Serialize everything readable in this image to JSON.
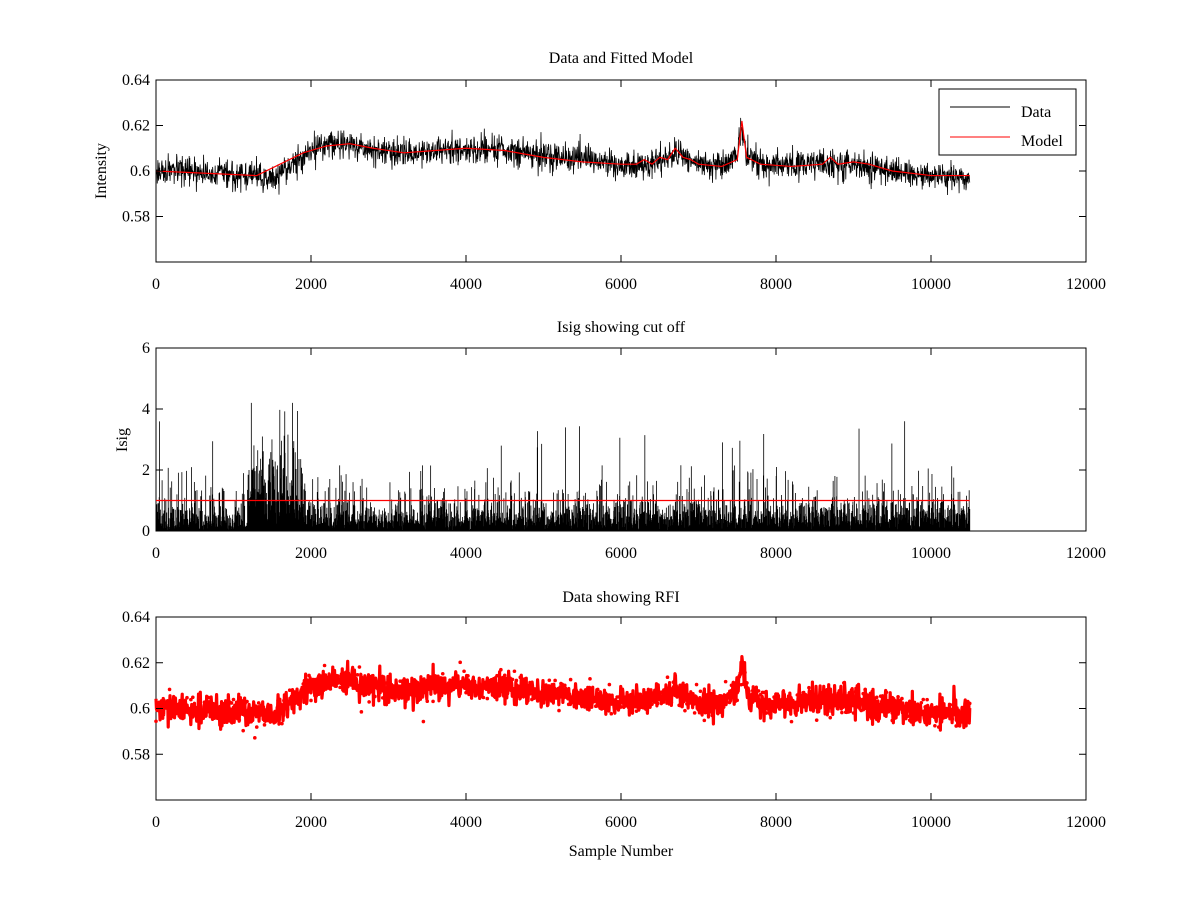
{
  "figure": {
    "background": "#ffffff",
    "data_color": "#000000",
    "model_color": "#ff0000"
  },
  "chart_data": [
    {
      "id": "panel1",
      "type": "line",
      "title": "Data and Fitted Model",
      "xlabel": "",
      "ylabel": "Intensity",
      "xlim": [
        0,
        12000
      ],
      "ylim": [
        0.56,
        0.64
      ],
      "xticks": [
        0,
        2000,
        4000,
        6000,
        8000,
        10000,
        12000
      ],
      "xtick_labels": [
        "0",
        "2000",
        "4000",
        "6000",
        "8000",
        "10000",
        "12000"
      ],
      "yticks": [
        0.58,
        0.6,
        0.62,
        0.64
      ],
      "ytick_labels": [
        "0.58",
        "0.6",
        "0.62",
        "0.64"
      ],
      "legend": {
        "placement": "top-right",
        "entries": [
          {
            "label": "Data",
            "color": "#000000"
          },
          {
            "label": "Model",
            "color": "#ff0000"
          }
        ]
      },
      "series": [
        {
          "name": "Data",
          "color": "#000000",
          "style": "noisy-line",
          "noise_amplitude": 0.0055,
          "x": [
            0,
            1300,
            1500,
            1900,
            2200,
            2500,
            2800,
            3200,
            3600,
            4000,
            4500,
            5000,
            5500,
            6000,
            6200,
            6500,
            6700,
            6800,
            7000,
            7300,
            7500,
            7560,
            7620,
            7800,
            8200,
            8600,
            8700,
            9000,
            9500,
            10000,
            10500
          ],
          "y": [
            0.6,
            0.598,
            0.596,
            0.607,
            0.612,
            0.612,
            0.609,
            0.608,
            0.609,
            0.61,
            0.609,
            0.607,
            0.605,
            0.603,
            0.603,
            0.604,
            0.608,
            0.606,
            0.603,
            0.602,
            0.608,
            0.62,
            0.607,
            0.603,
            0.602,
            0.604,
            0.603,
            0.603,
            0.6,
            0.598,
            0.597
          ]
        },
        {
          "name": "Model",
          "color": "#ff0000",
          "style": "line",
          "x": [
            0,
            1300,
            1600,
            1900,
            2200,
            2500,
            2800,
            3200,
            3600,
            4000,
            4500,
            5000,
            5500,
            6000,
            6200,
            6300,
            6400,
            6500,
            6600,
            6700,
            6800,
            6900,
            7000,
            7300,
            7500,
            7560,
            7620,
            7800,
            8200,
            8600,
            8700,
            8800,
            9000,
            9200,
            9500,
            10000,
            10500
          ],
          "y": [
            0.6,
            0.598,
            0.603,
            0.608,
            0.611,
            0.612,
            0.61,
            0.608,
            0.609,
            0.61,
            0.609,
            0.606,
            0.604,
            0.603,
            0.603,
            0.605,
            0.603,
            0.606,
            0.605,
            0.61,
            0.606,
            0.605,
            0.603,
            0.602,
            0.605,
            0.622,
            0.606,
            0.603,
            0.602,
            0.603,
            0.606,
            0.603,
            0.604,
            0.603,
            0.6,
            0.598,
            0.598
          ]
        }
      ]
    },
    {
      "id": "panel2",
      "type": "line",
      "title": "Isig showing cut off",
      "xlabel": "",
      "ylabel": "Isig",
      "xlim": [
        0,
        12000
      ],
      "ylim": [
        0,
        6
      ],
      "xticks": [
        0,
        2000,
        4000,
        6000,
        8000,
        10000,
        12000
      ],
      "xtick_labels": [
        "0",
        "2000",
        "4000",
        "6000",
        "8000",
        "10000",
        "12000"
      ],
      "yticks": [
        0,
        2,
        4,
        6
      ],
      "ytick_labels": [
        "0",
        "2",
        "4",
        "6"
      ],
      "series": [
        {
          "name": "Isig",
          "color": "#000000",
          "style": "spiky-noise",
          "x_range": [
            0,
            10500
          ],
          "typical_max": 1.8,
          "spike_max": 3.6,
          "burst_region": [
            1200,
            1900
          ],
          "burst_max": 4.2
        },
        {
          "name": "Cut off",
          "color": "#ff0000",
          "style": "line",
          "x": [
            0,
            10500
          ],
          "y": [
            1.0,
            1.0
          ]
        }
      ]
    },
    {
      "id": "panel3",
      "type": "scatter",
      "title": "Data showing RFI",
      "xlabel": "Sample Number",
      "ylabel": "",
      "xlim": [
        0,
        12000
      ],
      "ylim": [
        0.56,
        0.64
      ],
      "xticks": [
        0,
        2000,
        4000,
        6000,
        8000,
        10000,
        12000
      ],
      "xtick_labels": [
        "0",
        "2000",
        "4000",
        "6000",
        "8000",
        "10000",
        "12000"
      ],
      "yticks": [
        0.58,
        0.6,
        0.62,
        0.64
      ],
      "ytick_labels": [
        "0.58",
        "0.6",
        "0.62",
        "0.64"
      ],
      "series": [
        {
          "name": "RFI",
          "color": "#ff0000",
          "style": "noisy-markers",
          "noise_amplitude": 0.0055,
          "x": [
            0,
            1300,
            1500,
            1900,
            2200,
            2500,
            2800,
            3200,
            3600,
            4000,
            4500,
            5000,
            5500,
            6000,
            6200,
            6500,
            6700,
            6800,
            7000,
            7300,
            7500,
            7560,
            7620,
            7800,
            8200,
            8600,
            8700,
            9000,
            9500,
            10000,
            10500
          ],
          "y": [
            0.6,
            0.598,
            0.596,
            0.607,
            0.612,
            0.612,
            0.609,
            0.608,
            0.609,
            0.61,
            0.609,
            0.607,
            0.605,
            0.603,
            0.603,
            0.604,
            0.608,
            0.606,
            0.603,
            0.602,
            0.608,
            0.62,
            0.607,
            0.603,
            0.602,
            0.604,
            0.603,
            0.603,
            0.6,
            0.598,
            0.597
          ]
        }
      ]
    }
  ]
}
